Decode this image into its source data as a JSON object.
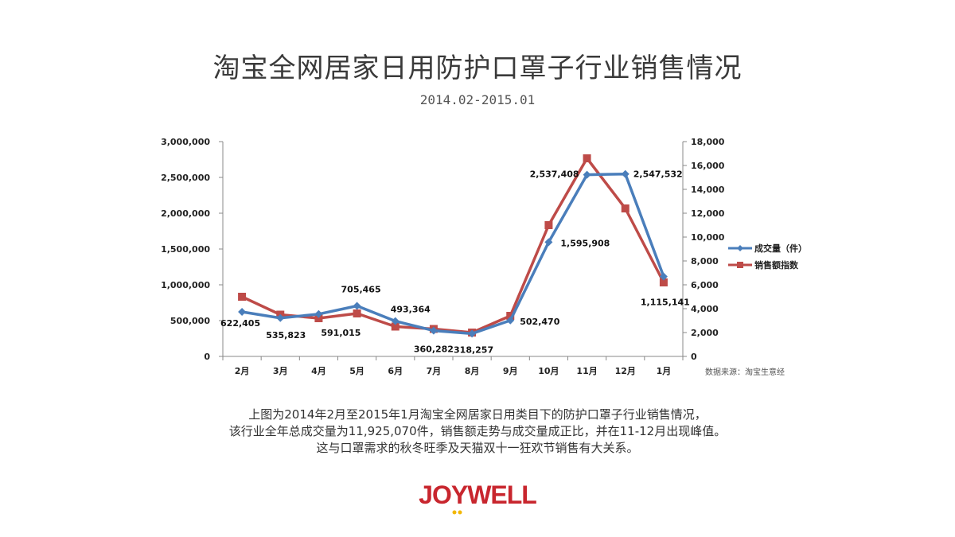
{
  "title": "淘宝全网居家日用防护口罩子行业销售情况",
  "subtitle": "2014.02-2015.01",
  "source_note": "数据来源：淘宝生意经",
  "caption": [
    "上图为2014年2月至2015年1月淘宝全网居家日用类目下的防护口罩子行业销售情况，",
    "该行业全年总成交量为11,925,070件，销售额走势与成交量成正比，并在11-12月出现峰值。",
    "这与口罩需求的秋冬旺季及天猫双十一狂欢节销售有大关系。"
  ],
  "logo": "JOYWELL",
  "chart_data": {
    "type": "line",
    "categories": [
      "2月",
      "3月",
      "4月",
      "5月",
      "6月",
      "7月",
      "8月",
      "9月",
      "10月",
      "11月",
      "12月",
      "1月"
    ],
    "series": [
      {
        "name": "成交量（件）",
        "axis": "left",
        "color": "#4a7ebb",
        "marker": "diamond",
        "values": [
          622405,
          535823,
          591015,
          705465,
          493364,
          360282,
          318257,
          502470,
          1595908,
          2537408,
          2547532,
          1115141
        ],
        "labels": [
          "622,405",
          "535,823",
          "591,015",
          "705,465",
          "493,364",
          "360,282",
          "318,257",
          "502,470",
          "1,595,908",
          "2,537,408",
          "2,547,532",
          "1,115,141"
        ]
      },
      {
        "name": "销售额指数",
        "axis": "right",
        "color": "#be4b48",
        "marker": "square",
        "values": [
          5000,
          3500,
          3200,
          3600,
          2500,
          2300,
          2000,
          3400,
          11000,
          16600,
          12400,
          6200
        ]
      }
    ],
    "y_left": {
      "range": [
        0,
        3000000
      ],
      "ticks": [
        "0",
        "500,000",
        "1,000,000",
        "1,500,000",
        "2,000,000",
        "2,500,000",
        "3,000,000"
      ]
    },
    "y_right": {
      "range": [
        0,
        18000
      ],
      "ticks": [
        "0",
        "2,000",
        "4,000",
        "6,000",
        "8,000",
        "10,000",
        "12,000",
        "14,000",
        "16,000",
        "18,000"
      ]
    },
    "grid": false,
    "legend_position": "right"
  }
}
